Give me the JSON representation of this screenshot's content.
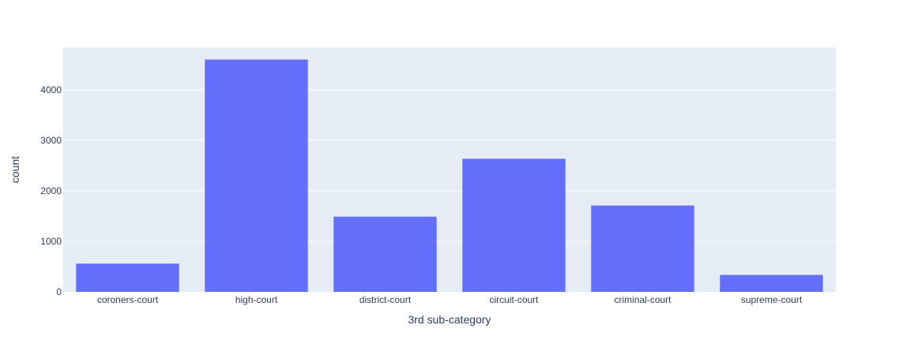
{
  "chart_data": {
    "type": "bar",
    "title": "",
    "xlabel": "3rd sub-category",
    "ylabel": "count",
    "categories": [
      "coroners-court",
      "high-court",
      "district-court",
      "circuit-court",
      "criminal-court",
      "supreme-court"
    ],
    "values": [
      560,
      4600,
      1490,
      2635,
      1710,
      335
    ],
    "ylim": [
      0,
      4842
    ],
    "yticks": [
      0,
      1000,
      2000,
      3000,
      4000
    ],
    "ytick_labels": [
      "0",
      "1000",
      "2000",
      "3000",
      "4000"
    ],
    "grid": true,
    "colors": {
      "bar": "#636efa",
      "plot_bg": "#e5ecf6",
      "grid": "#ffffff",
      "text": "#2a3f5f"
    }
  }
}
